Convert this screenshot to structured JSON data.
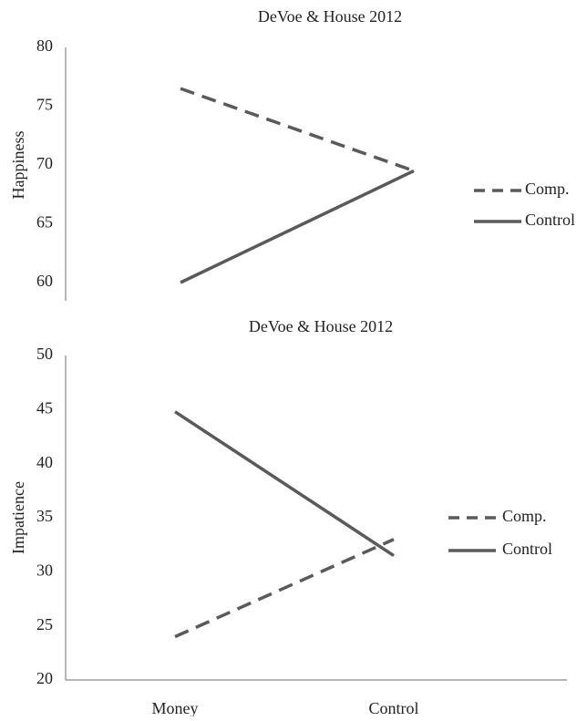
{
  "chart_data": [
    {
      "type": "line",
      "title": "DeVoe & House 2012",
      "xlabel": "",
      "ylabel": "Happiness",
      "categories": [
        "Money",
        "Control"
      ],
      "show_categories": false,
      "ylim": [
        60,
        80
      ],
      "yticks": [
        60,
        65,
        70,
        75,
        80
      ],
      "grid": false,
      "legend_position": "right",
      "series": [
        {
          "name": "Comp.",
          "values": [
            76.5,
            69.5
          ],
          "style": "dashed",
          "color": "#5a5a5a"
        },
        {
          "name": "Control",
          "values": [
            60,
            69.5
          ],
          "style": "solid",
          "color": "#5a5a5a"
        }
      ]
    },
    {
      "type": "line",
      "title": "DeVoe & House 2012",
      "xlabel": "",
      "ylabel": "Impatience",
      "categories": [
        "Money",
        "Control"
      ],
      "show_categories": true,
      "ylim": [
        20,
        50
      ],
      "yticks": [
        20,
        25,
        30,
        35,
        40,
        45,
        50
      ],
      "grid": false,
      "legend_position": "right",
      "series": [
        {
          "name": "Comp.",
          "values": [
            24,
            33
          ],
          "style": "dashed",
          "color": "#5a5a5a"
        },
        {
          "name": "Control",
          "values": [
            44.8,
            31.5
          ],
          "style": "solid",
          "color": "#5a5a5a"
        }
      ]
    }
  ]
}
